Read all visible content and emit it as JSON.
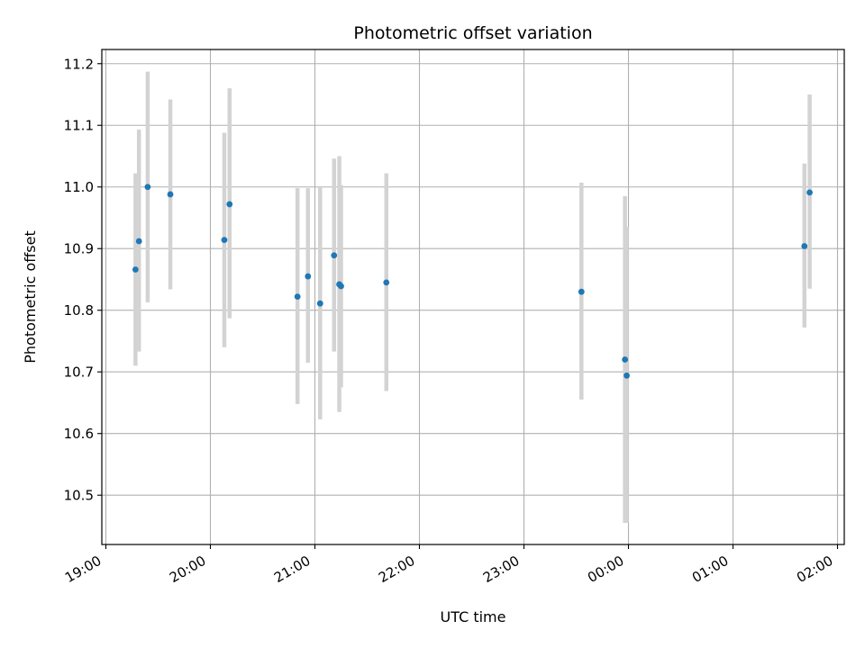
{
  "chart_data": {
    "type": "scatter",
    "title": "Photometric offset variation",
    "xlabel": "UTC time",
    "ylabel": "Photometric offset",
    "x_axis": "time (UTC), hours after 19:00 on the first night",
    "xlim_labels": [
      "19:00",
      "02:00"
    ],
    "ylim": [
      10.42,
      11.223
    ],
    "grid": true,
    "x_ticks": [
      {
        "label": "19:00",
        "hours": 0
      },
      {
        "label": "20:00",
        "hours": 1
      },
      {
        "label": "21:00",
        "hours": 2
      },
      {
        "label": "22:00",
        "hours": 3
      },
      {
        "label": "23:00",
        "hours": 4
      },
      {
        "label": "00:00",
        "hours": 5
      },
      {
        "label": "01:00",
        "hours": 6
      },
      {
        "label": "02:00",
        "hours": 7
      }
    ],
    "y_ticks": [
      "10.5",
      "10.6",
      "10.7",
      "10.8",
      "10.9",
      "11.0",
      "11.1",
      "11.2"
    ],
    "point_color": "#1f77b4",
    "errorbar_color": "#d3d3d3",
    "points": [
      {
        "time": "19:17",
        "y": 10.866,
        "low": 10.71,
        "high": 11.022
      },
      {
        "time": "19:19",
        "y": 10.912,
        "low": 10.733,
        "high": 11.093
      },
      {
        "time": "19:24",
        "y": 11.0,
        "low": 10.813,
        "high": 11.187
      },
      {
        "time": "19:37",
        "y": 10.988,
        "low": 10.834,
        "high": 11.142
      },
      {
        "time": "20:08",
        "y": 10.914,
        "low": 10.74,
        "high": 11.088
      },
      {
        "time": "20:11",
        "y": 10.972,
        "low": 10.787,
        "high": 11.16
      },
      {
        "time": "20:50",
        "y": 10.822,
        "low": 10.648,
        "high": 10.998
      },
      {
        "time": "20:56",
        "y": 10.855,
        "low": 10.715,
        "high": 10.998
      },
      {
        "time": "21:03",
        "y": 10.811,
        "low": 10.623,
        "high": 11.0
      },
      {
        "time": "21:11",
        "y": 10.889,
        "low": 10.733,
        "high": 11.046
      },
      {
        "time": "21:14",
        "y": 10.842,
        "low": 10.635,
        "high": 11.05
      },
      {
        "time": "21:15",
        "y": 10.839,
        "low": 10.675,
        "high": 11.003
      },
      {
        "time": "21:41",
        "y": 10.845,
        "low": 10.669,
        "high": 11.022
      },
      {
        "time": "23:33",
        "y": 10.83,
        "low": 10.655,
        "high": 11.007
      },
      {
        "time": "23:58",
        "y": 10.72,
        "low": 10.455,
        "high": 10.985
      },
      {
        "time": "23:59",
        "y": 10.694,
        "low": 10.455,
        "high": 10.935
      },
      {
        "time": "01:41",
        "y": 10.904,
        "low": 10.772,
        "high": 11.038
      },
      {
        "time": "01:44",
        "y": 10.991,
        "low": 10.835,
        "high": 11.15
      }
    ]
  }
}
